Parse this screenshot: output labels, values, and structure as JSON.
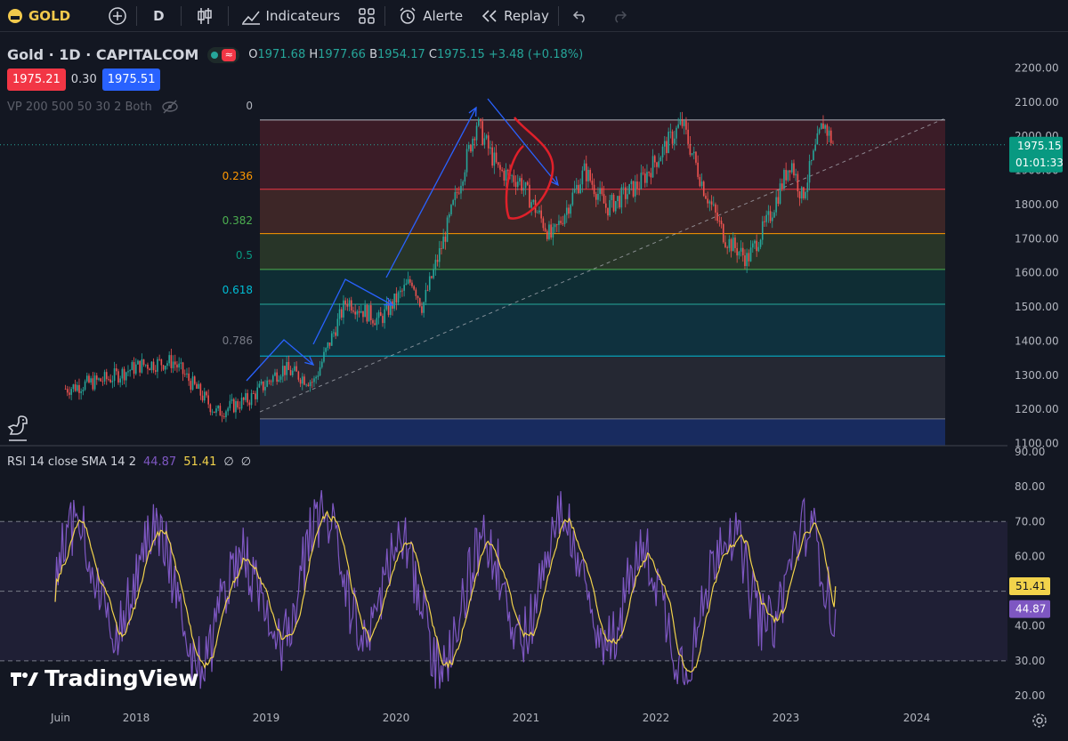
{
  "toolbar": {
    "symbol": "GOLD",
    "interval": "D",
    "indicators_label": "Indicateurs",
    "alert_label": "Alerte",
    "replay_label": "Replay"
  },
  "legend": {
    "title": "Gold · 1D · CAPITALCOM",
    "open_label": "O",
    "open": "1971.68",
    "high_label": "H",
    "high": "1977.66",
    "low_label": "B",
    "low": "1954.17",
    "close_label": "C",
    "close": "1975.15",
    "change": "+3.48 (+0.18%)",
    "bid": "1975.21",
    "spread": "0.30",
    "ask": "1975.51",
    "vp_label": "VP 200 500 50 30 2 Both"
  },
  "rsi_legend": {
    "label": "RSI 14 close SMA 14 2",
    "rsi_value": "44.87",
    "sma_value": "51.41",
    "extra1": "∅",
    "extra2": "∅"
  },
  "price_axis": {
    "ticks": [
      "2200.00",
      "2100.00",
      "2000.00",
      "1900.00",
      "1800.00",
      "1700.00",
      "1600.00",
      "1500.00",
      "1400.00",
      "1300.00",
      "1200.00",
      "1100.00"
    ],
    "last_price": "1975.15",
    "countdown": "01:01:33"
  },
  "rsi_axis": {
    "ticks": [
      "90.00",
      "80.00",
      "70.00",
      "60.00",
      "50.00",
      "40.00",
      "30.00",
      "20.00"
    ],
    "sma_badge": "51.41",
    "rsi_badge": "44.87"
  },
  "time_axis": [
    "Juin",
    "2018",
    "2019",
    "2020",
    "2021",
    "2022",
    "2023",
    "2024"
  ],
  "fib": {
    "levels": [
      "0",
      "0.236",
      "0.382",
      "0.5",
      "0.618",
      "0.786"
    ],
    "colors": [
      "#f23645",
      "#f23645",
      "#ff9800",
      "#4caf50",
      "#089981",
      "#00bcd4",
      "#787b86",
      "#2962ff"
    ]
  },
  "branding": {
    "logo_text": "TradingView"
  },
  "colors": {
    "up": "#26a69a",
    "down": "#ef5350",
    "rsi": "#7e57c2",
    "sma": "#f2d34b",
    "arrow": "#2962ff",
    "circle": "#e0202a"
  },
  "chart_data": {
    "type": "line",
    "title": "Gold · 1D · CAPITALCOM",
    "x": [
      "2017-06",
      "2017-10",
      "2018-01",
      "2018-04",
      "2018-08",
      "2018-11",
      "2019-02",
      "2019-05",
      "2019-08",
      "2019-11",
      "2020-02",
      "2020-03",
      "2020-05",
      "2020-08",
      "2020-10",
      "2020-12",
      "2021-03",
      "2021-06",
      "2021-08",
      "2021-11",
      "2022-03",
      "2022-05",
      "2022-07",
      "2022-09",
      "2022-11",
      "2023-01",
      "2023-02",
      "2023-04",
      "2023-05"
    ],
    "series": [
      {
        "values": [
          1260,
          1290,
          1330,
          1340,
          1190,
          1230,
          1320,
          1280,
          1520,
          1460,
          1580,
          1500,
          1700,
          2040,
          1900,
          1870,
          1700,
          1900,
          1790,
          1860,
          2040,
          1850,
          1700,
          1640,
          1760,
          1930,
          1820,
          2040,
          1975
        ]
      }
    ],
    "ylim": [
      1100,
      2200
    ],
    "fib_levels": {
      "0": 2048,
      "0.236": 1845,
      "0.382": 1715,
      "0.5": 1610,
      "0.618": 1508,
      "0.786": 1356
    },
    "rsi": {
      "ylim": [
        20,
        90
      ],
      "overbought": 70,
      "middle": 50,
      "oversold": 30,
      "last_rsi": 44.87,
      "last_sma": 51.41
    }
  }
}
